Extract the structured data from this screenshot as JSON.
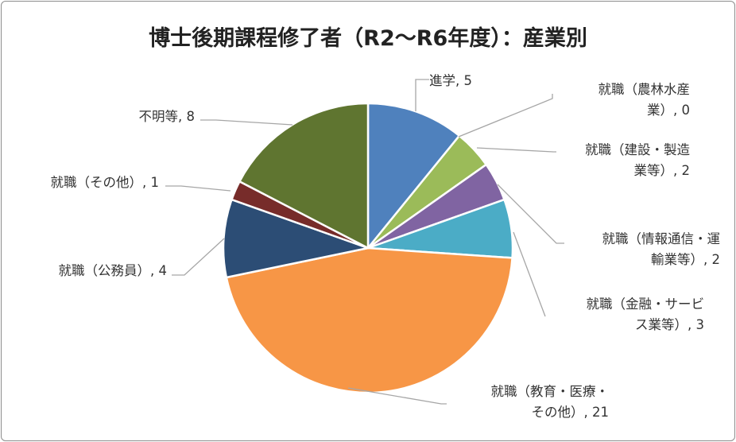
{
  "chart_data": {
    "type": "pie",
    "title": "博士後期課程修了者（R2～R6年度）：産業別",
    "slices": [
      {
        "name": "進学",
        "value": 5,
        "color": "#4f81bd",
        "label_lines": [
          "進学, 5"
        ]
      },
      {
        "name": "就職（農林水産業）",
        "value": 0,
        "color": "#f79646",
        "label_lines": [
          "就職（農林水産",
          "業）, 0"
        ]
      },
      {
        "name": "就職（建設・製造業等）",
        "value": 2,
        "color": "#9bbb59",
        "label_lines": [
          "就職（建設・製造",
          "業等）, 2"
        ]
      },
      {
        "name": "就職（情報通信・運輸業等）",
        "value": 2,
        "color": "#8064a2",
        "label_lines": [
          "就職（情報通信・運",
          "輸業等）, 2"
        ]
      },
      {
        "name": "就職（金融・サービス業等）",
        "value": 3,
        "color": "#4bacc6",
        "label_lines": [
          "就職（金融・サービ",
          "ス業等）, 3"
        ]
      },
      {
        "name": "就職（教育・医療・その他）",
        "value": 21,
        "color": "#f79646",
        "label_lines": [
          "就職（教育・医療・",
          "その他）, 21"
        ]
      },
      {
        "name": "就職（公務員）",
        "value": 4,
        "color": "#2c4d75",
        "label_lines": [
          "就職（公務員）, 4"
        ]
      },
      {
        "name": "就職（その他）",
        "value": 1,
        "color": "#772c2a",
        "label_lines": [
          "就職（その他）, 1"
        ]
      },
      {
        "name": "不明等",
        "value": 8,
        "color": "#5f7530",
        "label_lines": [
          "不明等, 8"
        ]
      }
    ]
  }
}
